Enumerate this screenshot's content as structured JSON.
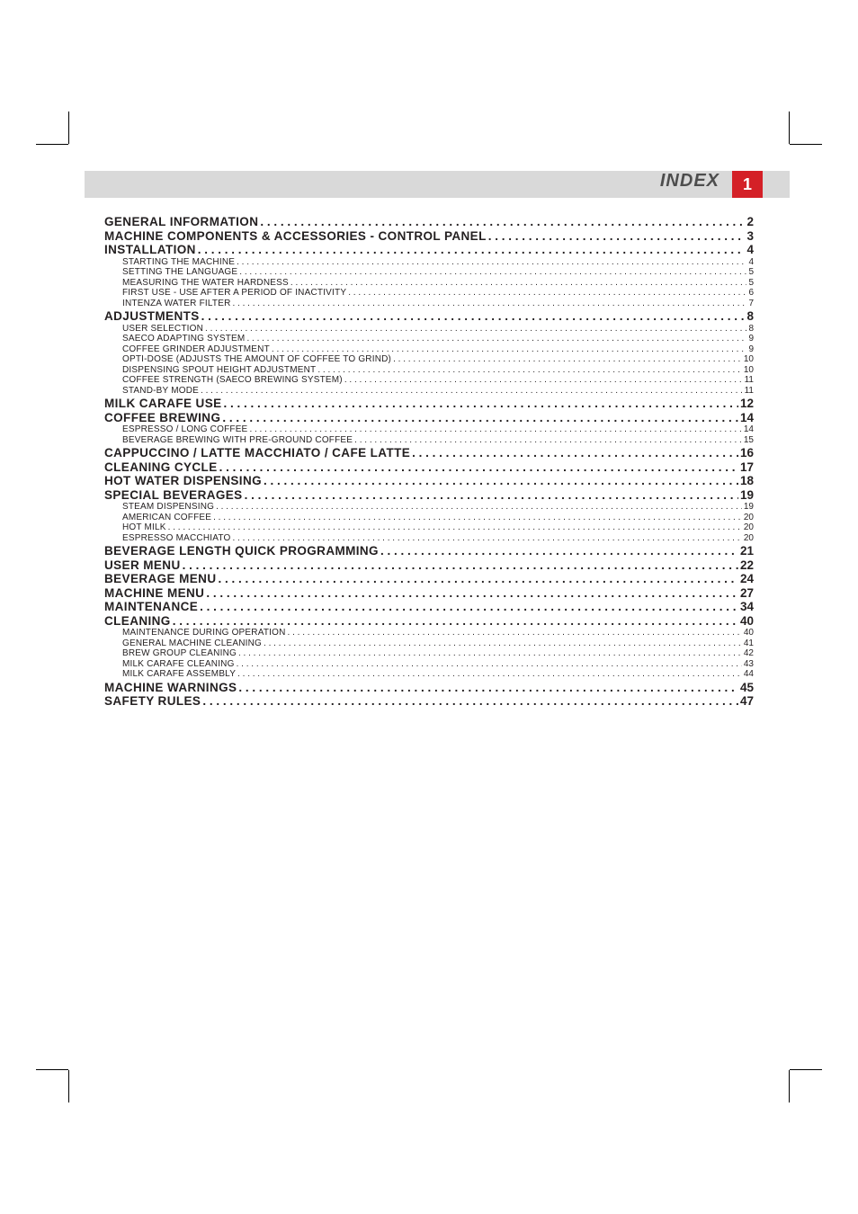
{
  "colors": {
    "header_bg": "#d9d9d9",
    "header_text": "#4d4d4d",
    "page_num_box": "#d42027",
    "page_num_text": "#ffffff",
    "toc_text": "#231f20",
    "background": "#ffffff"
  },
  "header": {
    "title": "INDEX",
    "page_number": "1",
    "title_fontsize": 20,
    "page_num_fontsize": 18
  },
  "typography": {
    "l1_fontsize": 13.5,
    "l2_fontsize": 10,
    "font_family": "Myriad Pro / Helvetica Neue condensed"
  },
  "toc": [
    {
      "level": 1,
      "label": "GENERAL INFORMATION",
      "page": "2"
    },
    {
      "level": 1,
      "label": "MACHINE COMPONENTS & ACCESSORIES - CONTROL PANEL",
      "page": "3"
    },
    {
      "level": 1,
      "label": "INSTALLATION",
      "page": "4"
    },
    {
      "level": 2,
      "label": "STARTING THE MACHINE",
      "page": "4"
    },
    {
      "level": 2,
      "label": "SETTING THE LANGUAGE",
      "page": "5"
    },
    {
      "level": 2,
      "label": "MEASURING THE WATER HARDNESS",
      "page": "5"
    },
    {
      "level": 2,
      "label": "FIRST USE - USE AFTER A PERIOD OF INACTIVITY",
      "page": "6"
    },
    {
      "level": 2,
      "label": "INTENZA WATER FILTER",
      "page": "7"
    },
    {
      "level": 1,
      "label": "ADJUSTMENTS",
      "page": "8"
    },
    {
      "level": 2,
      "label": "USER SELECTION",
      "page": "8"
    },
    {
      "level": 2,
      "label": "SAECO ADAPTING SYSTEM",
      "page": "9"
    },
    {
      "level": 2,
      "label": "COFFEE GRINDER ADJUSTMENT",
      "page": "9"
    },
    {
      "level": 2,
      "label": "OPTI-DOSE (ADJUSTS THE AMOUNT OF COFFEE TO GRIND)",
      "page": "10"
    },
    {
      "level": 2,
      "label": "DISPENSING SPOUT HEIGHT ADJUSTMENT",
      "page": "10"
    },
    {
      "level": 2,
      "label": "COFFEE STRENGTH (SAECO BREWING SYSTEM)",
      "page": "11"
    },
    {
      "level": 2,
      "label": "STAND-BY MODE",
      "page": "11"
    },
    {
      "level": 1,
      "label": "MILK CARAFE USE",
      "page": "12"
    },
    {
      "level": 1,
      "label": "COFFEE BREWING",
      "page": "14"
    },
    {
      "level": 2,
      "label": "ESPRESSO / LONG COFFEE",
      "page": "14"
    },
    {
      "level": 2,
      "label": "BEVERAGE BREWING WITH PRE-GROUND COFFEE",
      "page": "15"
    },
    {
      "level": 1,
      "label": "CAPPUCCINO / LATTE MACCHIATO / CAFE LATTE",
      "page": "16"
    },
    {
      "level": 1,
      "label": "CLEANING CYCLE",
      "page": "17"
    },
    {
      "level": 1,
      "label": "HOT WATER DISPENSING",
      "page": "18"
    },
    {
      "level": 1,
      "label": "SPECIAL BEVERAGES",
      "page": "19"
    },
    {
      "level": 2,
      "label": "STEAM DISPENSING",
      "page": "19"
    },
    {
      "level": 2,
      "label": "AMERICAN COFFEE",
      "page": "20"
    },
    {
      "level": 2,
      "label": "HOT MILK",
      "page": "20"
    },
    {
      "level": 2,
      "label": "ESPRESSO MACCHIATO",
      "page": "20"
    },
    {
      "level": 1,
      "label": "BEVERAGE LENGTH QUICK PROGRAMMING",
      "page": "21"
    },
    {
      "level": 1,
      "label": "USER MENU",
      "page": "22"
    },
    {
      "level": 1,
      "label": "BEVERAGE MENU",
      "page": "24"
    },
    {
      "level": 1,
      "label": "MACHINE MENU",
      "page": "27"
    },
    {
      "level": 1,
      "label": "MAINTENANCE",
      "page": "34"
    },
    {
      "level": 1,
      "label": "CLEANING",
      "page": "40"
    },
    {
      "level": 2,
      "label": "MAINTENANCE DURING OPERATION",
      "page": "40"
    },
    {
      "level": 2,
      "label": "GENERAL MACHINE CLEANING",
      "page": "41"
    },
    {
      "level": 2,
      "label": "BREW GROUP CLEANING",
      "page": "42"
    },
    {
      "level": 2,
      "label": "MILK CARAFE CLEANING",
      "page": "43"
    },
    {
      "level": 2,
      "label": "MILK CARAFE ASSEMBLY",
      "page": "44"
    },
    {
      "level": 1,
      "label": "MACHINE WARNINGS",
      "page": "45"
    },
    {
      "level": 1,
      "label": "SAFETY RULES",
      "page": "47"
    }
  ]
}
